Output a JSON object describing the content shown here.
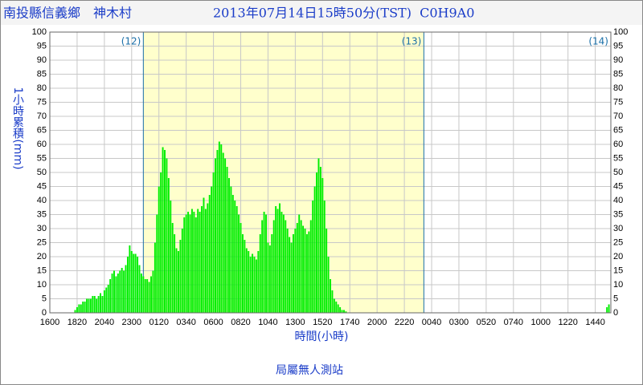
{
  "chart_data": {
    "type": "bar",
    "title": "南投縣信義鄉　神木村",
    "subtitle": "2013年07月14日15時50分(TST)  C0H9A0",
    "y_label": "1小時累積(mm)",
    "x_label": "時間(小時)",
    "footer": "局屬無人測站",
    "color": "#00ee00",
    "shade_color": "#ffffcc",
    "shaded": [
      480,
      1920
    ],
    "markers": [
      {
        "value": 480,
        "label": "(12)"
      },
      {
        "value": 1920,
        "label": "(13)"
      },
      {
        "value": 2880,
        "label": "(14)"
      }
    ],
    "xlim": [
      0,
      2880
    ],
    "ylim": [
      0,
      100
    ],
    "yticks": [
      0,
      5,
      10,
      15,
      20,
      25,
      30,
      35,
      40,
      45,
      50,
      55,
      60,
      65,
      70,
      75,
      80,
      85,
      90,
      95,
      100
    ],
    "xticks": [
      {
        "value": 0,
        "label": "1600"
      },
      {
        "value": 140,
        "label": "1820"
      },
      {
        "value": 280,
        "label": "2040"
      },
      {
        "value": 420,
        "label": "2300"
      },
      {
        "value": 560,
        "label": "0120"
      },
      {
        "value": 700,
        "label": "0340"
      },
      {
        "value": 840,
        "label": "0600"
      },
      {
        "value": 980,
        "label": "0820"
      },
      {
        "value": 1120,
        "label": "1040"
      },
      {
        "value": 1260,
        "label": "1300"
      },
      {
        "value": 1400,
        "label": "1520"
      },
      {
        "value": 1540,
        "label": "1740"
      },
      {
        "value": 1680,
        "label": "2000"
      },
      {
        "value": 1820,
        "label": "2220"
      },
      {
        "value": 1960,
        "label": "0040"
      },
      {
        "value": 2100,
        "label": "0300"
      },
      {
        "value": 2240,
        "label": "0520"
      },
      {
        "value": 2380,
        "label": "0740"
      },
      {
        "value": 2520,
        "label": "1000"
      },
      {
        "value": 2660,
        "label": "1220"
      },
      {
        "value": 2800,
        "label": "1440"
      }
    ],
    "grid": true,
    "x": [
      130,
      140,
      150,
      160,
      170,
      180,
      190,
      200,
      210,
      220,
      230,
      240,
      250,
      260,
      270,
      280,
      290,
      300,
      310,
      320,
      330,
      340,
      350,
      360,
      370,
      380,
      390,
      400,
      410,
      420,
      430,
      440,
      450,
      460,
      470,
      480,
      490,
      500,
      510,
      520,
      530,
      540,
      550,
      560,
      570,
      580,
      590,
      600,
      610,
      620,
      630,
      640,
      650,
      660,
      670,
      680,
      690,
      700,
      710,
      720,
      730,
      740,
      750,
      760,
      770,
      780,
      790,
      800,
      810,
      820,
      830,
      840,
      850,
      860,
      870,
      880,
      890,
      900,
      910,
      920,
      930,
      940,
      950,
      960,
      970,
      980,
      990,
      1000,
      1010,
      1020,
      1030,
      1040,
      1050,
      1060,
      1070,
      1080,
      1090,
      1100,
      1110,
      1120,
      1130,
      1140,
      1150,
      1160,
      1170,
      1180,
      1190,
      1200,
      1210,
      1220,
      1230,
      1240,
      1250,
      1260,
      1270,
      1280,
      1290,
      1300,
      1310,
      1320,
      1330,
      1340,
      1350,
      1360,
      1370,
      1380,
      1390,
      1400,
      1410,
      1420,
      1430,
      1440,
      1450,
      1460,
      1470,
      1480,
      1490,
      1500,
      1510,
      1520,
      2860,
      2870
    ],
    "values": [
      1,
      2,
      3,
      3,
      4,
      4,
      5,
      5,
      5,
      6,
      6,
      5,
      6,
      7,
      6,
      8,
      9,
      10,
      12,
      14,
      15,
      13,
      14,
      15,
      16,
      15,
      17,
      20,
      24,
      22,
      21,
      21,
      20,
      17,
      14,
      13,
      12,
      12,
      11,
      13,
      15,
      25,
      35,
      45,
      50,
      59,
      58,
      55,
      48,
      40,
      32,
      28,
      23,
      22,
      26,
      30,
      34,
      35,
      36,
      35,
      37,
      36,
      34,
      37,
      36,
      38,
      41,
      37,
      39,
      42,
      45,
      50,
      55,
      58,
      61,
      60,
      57,
      55,
      52,
      48,
      45,
      42,
      40,
      38,
      35,
      32,
      28,
      26,
      23,
      22,
      20,
      21,
      20,
      19,
      22,
      28,
      33,
      36,
      35,
      25,
      24,
      28,
      33,
      38,
      37,
      39,
      36,
      35,
      33,
      30,
      27,
      25,
      28,
      30,
      32,
      35,
      33,
      31,
      30,
      28,
      29,
      33,
      40,
      45,
      50,
      55,
      52,
      48,
      40,
      30,
      20,
      12,
      8,
      5,
      4,
      3,
      2,
      1,
      1,
      0.5,
      2,
      3
    ]
  }
}
